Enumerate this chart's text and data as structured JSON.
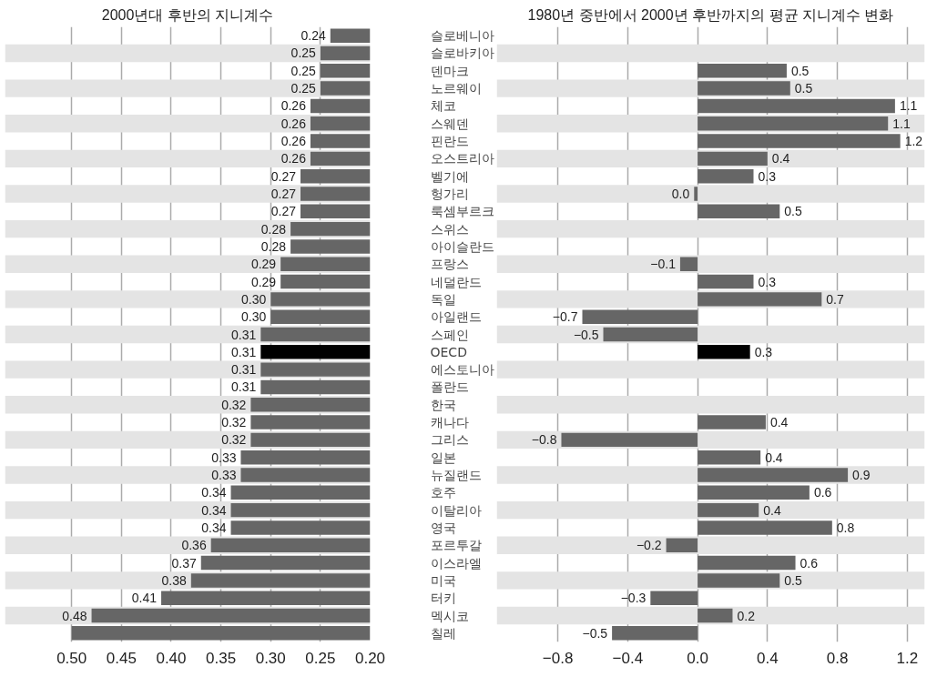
{
  "chart_data": [
    {
      "type": "bar",
      "orientation": "horizontal",
      "title": "2000년대 후반의 지니계수",
      "categories": [
        "슬로베니아",
        "슬로바키아",
        "덴마크",
        "노르웨이",
        "체코",
        "스웨덴",
        "핀란드",
        "오스트리아",
        "벨기에",
        "헝가리",
        "룩셈부르크",
        "스위스",
        "아이슬란드",
        "프랑스",
        "네덜란드",
        "독일",
        "아일랜드",
        "스페인",
        "OECD",
        "에스토니아",
        "폴란드",
        "한국",
        "캐나다",
        "그리스",
        "일본",
        "뉴질랜드",
        "호주",
        "이탈리아",
        "영국",
        "포르투갈",
        "이스라엘",
        "미국",
        "터키",
        "멕시코",
        "칠레"
      ],
      "values": [
        0.24,
        0.25,
        0.25,
        0.25,
        0.26,
        0.26,
        0.26,
        0.26,
        0.27,
        0.27,
        0.27,
        0.28,
        0.28,
        0.29,
        0.29,
        0.3,
        0.3,
        0.31,
        0.31,
        0.31,
        0.31,
        0.32,
        0.32,
        0.32,
        0.33,
        0.33,
        0.34,
        0.34,
        0.34,
        0.36,
        0.37,
        0.38,
        0.41,
        0.48,
        0.5
      ],
      "value_labels": [
        "0.24",
        "0.25",
        "0.25",
        "0.25",
        "0.26",
        "0.26",
        "0.26",
        "0.26",
        "0.27",
        "0.27",
        "0.27",
        "0.28",
        "0.28",
        "0.29",
        "0.29",
        "0.30",
        "0.30",
        "0.31",
        "0.31",
        "0.31",
        "0.31",
        "0.32",
        "0.32",
        "0.32",
        "0.33",
        "0.33",
        "0.34",
        "0.34",
        "0.34",
        "0.36",
        "0.37",
        "0.38",
        "0.41",
        "0.48",
        null
      ],
      "colors": [
        "#666666",
        "#666666",
        "#666666",
        "#666666",
        "#666666",
        "#666666",
        "#666666",
        "#666666",
        "#666666",
        "#666666",
        "#666666",
        "#666666",
        "#666666",
        "#666666",
        "#666666",
        "#666666",
        "#666666",
        "#666666",
        "#000000",
        "#666666",
        "#666666",
        "#666666",
        "#666666",
        "#666666",
        "#666666",
        "#666666",
        "#666666",
        "#666666",
        "#666666",
        "#666666",
        "#666666",
        "#666666",
        "#666666",
        "#666666",
        "#666666"
      ],
      "xlim": [
        0.567,
        0.2
      ],
      "xticks": [
        {
          "value": 0.5,
          "label": "0.50"
        },
        {
          "value": 0.45,
          "label": "0.45"
        },
        {
          "value": 0.4,
          "label": "0.40"
        },
        {
          "value": 0.35,
          "label": "0.35"
        },
        {
          "value": 0.3,
          "label": "0.30"
        },
        {
          "value": 0.25,
          "label": "0.25"
        },
        {
          "value": 0.2,
          "label": "0.20"
        }
      ],
      "grid": "x"
    },
    {
      "type": "bar",
      "orientation": "horizontal",
      "title": "1980년 중반에서 2000년 후반까지의 평균 지니계수 변화",
      "categories": [
        null,
        null,
        null,
        null,
        null,
        null,
        null,
        null,
        null,
        null,
        null,
        null,
        null,
        null,
        null,
        null,
        null,
        null,
        null,
        null,
        null,
        null,
        null,
        null,
        null,
        null,
        null,
        null,
        null,
        null,
        null,
        null,
        null,
        null,
        null
      ],
      "values": [
        null,
        null,
        0.51,
        0.53,
        1.13,
        1.09,
        1.16,
        0.4,
        0.32,
        -0.02,
        0.47,
        null,
        null,
        -0.1,
        0.32,
        0.71,
        -0.66,
        -0.54,
        0.3,
        null,
        null,
        null,
        0.39,
        -0.78,
        0.36,
        0.86,
        0.64,
        0.35,
        0.77,
        -0.18,
        0.56,
        0.47,
        -0.27,
        0.2,
        -0.49
      ],
      "value_labels": [
        null,
        null,
        "0.5",
        "0.5",
        "1.1",
        "1.1",
        "1.2",
        "0.4",
        "0.3",
        "0.0",
        "0.5",
        null,
        null,
        "−0.1",
        "0.3",
        "0.7",
        "−0.7",
        "−0.5",
        "0.3",
        null,
        null,
        null,
        "0.4",
        "−0.8",
        "0.4",
        "0.9",
        "0.6",
        "0.4",
        "0.8",
        "−0.2",
        "0.6",
        "0.5",
        "−0.3",
        "0.2",
        "−0.5"
      ],
      "colors": [
        "#666666",
        "#666666",
        "#666666",
        "#666666",
        "#666666",
        "#666666",
        "#666666",
        "#666666",
        "#666666",
        "#666666",
        "#666666",
        "#666666",
        "#666666",
        "#666666",
        "#666666",
        "#666666",
        "#666666",
        "#666666",
        "#000000",
        "#666666",
        "#666666",
        "#666666",
        "#666666",
        "#666666",
        "#666666",
        "#666666",
        "#666666",
        "#666666",
        "#666666",
        "#666666",
        "#666666",
        "#666666",
        "#666666",
        "#666666",
        "#666666"
      ],
      "xlim": [
        -1.15,
        1.3
      ],
      "xticks": [
        {
          "value": -0.8,
          "label": "−0.8"
        },
        {
          "value": -0.4,
          "label": "−0.4"
        },
        {
          "value": 0,
          "label": "0.0"
        },
        {
          "value": 0.4,
          "label": "0.4"
        },
        {
          "value": 0.8,
          "label": "0.8"
        },
        {
          "value": 1.2,
          "label": "1.2"
        }
      ],
      "tick_labels": "x",
      "grid": "x"
    }
  ]
}
